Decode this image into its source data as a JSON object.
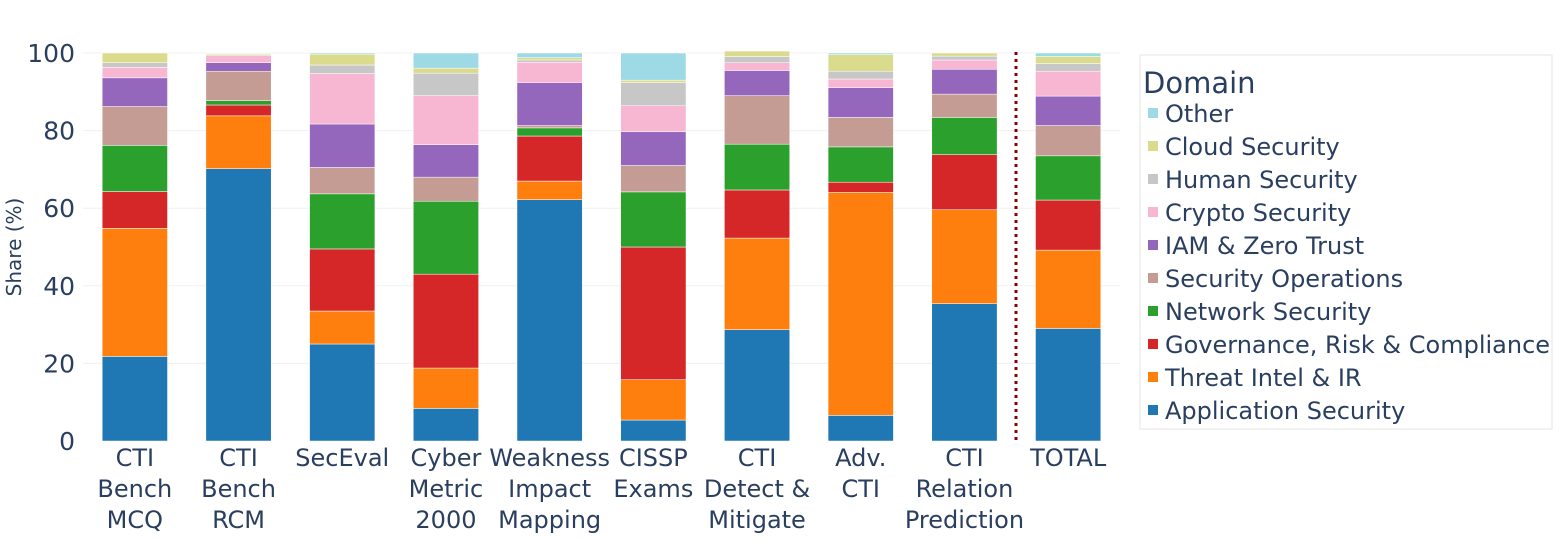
{
  "chart_data": {
    "type": "bar",
    "stacked": true,
    "title": "",
    "xlabel": "",
    "ylabel": "Share (%)",
    "ylim": [
      0,
      100
    ],
    "yticks": [
      0,
      20,
      40,
      60,
      80,
      100
    ],
    "grid": true,
    "legend_title": "Domain",
    "legend_position": "right",
    "separator_before": "TOTAL",
    "categories": [
      [
        "CTI",
        "Bench",
        "MCQ"
      ],
      [
        "CTI",
        "Bench",
        "RCM"
      ],
      [
        "SecEval"
      ],
      [
        "Cyber",
        "Metric",
        "2000"
      ],
      [
        "Weakness",
        "Impact",
        "Mapping"
      ],
      [
        "CISSP",
        "Exams"
      ],
      [
        "CTI",
        "Detect &",
        "Mitigate"
      ],
      [
        "Adv.",
        "CTI"
      ],
      [
        "CTI",
        "Relation",
        "Prediction"
      ],
      [
        "TOTAL"
      ]
    ],
    "series": [
      {
        "name": "Application Security",
        "color": "#1f77b4",
        "values": [
          21.8,
          70.2,
          25.0,
          8.4,
          62.2,
          5.4,
          28.7,
          6.6,
          35.4,
          29.0
        ]
      },
      {
        "name": "Threat Intel & IR",
        "color": "#ff7f0e",
        "values": [
          33.0,
          13.6,
          8.5,
          10.4,
          4.8,
          10.4,
          23.6,
          57.5,
          24.2,
          20.2
        ]
      },
      {
        "name": "Governance, Risk & Compliance",
        "color": "#d62728",
        "values": [
          9.5,
          2.8,
          16.0,
          24.2,
          11.6,
          34.2,
          12.4,
          2.6,
          14.2,
          12.9
        ]
      },
      {
        "name": "Network Security",
        "color": "#2ca02c",
        "values": [
          11.9,
          1.1,
          14.2,
          18.8,
          2.1,
          14.2,
          11.8,
          9.1,
          9.6,
          11.4
        ]
      },
      {
        "name": "Security Operations",
        "color": "#c49c94",
        "values": [
          10.0,
          7.6,
          6.8,
          6.2,
          0.6,
          6.8,
          12.5,
          7.6,
          6.0,
          7.8
        ]
      },
      {
        "name": "IAM & Zero Trust",
        "color": "#9467bd",
        "values": [
          7.4,
          2.2,
          11.2,
          8.4,
          11.1,
          8.7,
          6.5,
          7.7,
          6.4,
          7.6
        ]
      },
      {
        "name": "Crypto Security",
        "color": "#f7b6d2",
        "values": [
          2.7,
          1.8,
          13.0,
          12.6,
          5.2,
          6.7,
          2.0,
          2.2,
          2.4,
          6.4
        ]
      },
      {
        "name": "Human Security",
        "color": "#c7c7c7",
        "values": [
          1.2,
          0.3,
          2.2,
          5.8,
          0.6,
          6.0,
          1.6,
          2.0,
          1.0,
          2.0
        ]
      },
      {
        "name": "Cloud Security",
        "color": "#dbdb8d",
        "values": [
          2.5,
          0.3,
          2.8,
          1.3,
          0.6,
          0.6,
          1.4,
          4.3,
          0.8,
          1.8
        ]
      },
      {
        "name": "Other",
        "color": "#9edae5",
        "values": [
          0.0,
          0.1,
          0.3,
          3.9,
          1.2,
          7.0,
          0.0,
          0.4,
          0.0,
          0.9
        ]
      }
    ]
  }
}
